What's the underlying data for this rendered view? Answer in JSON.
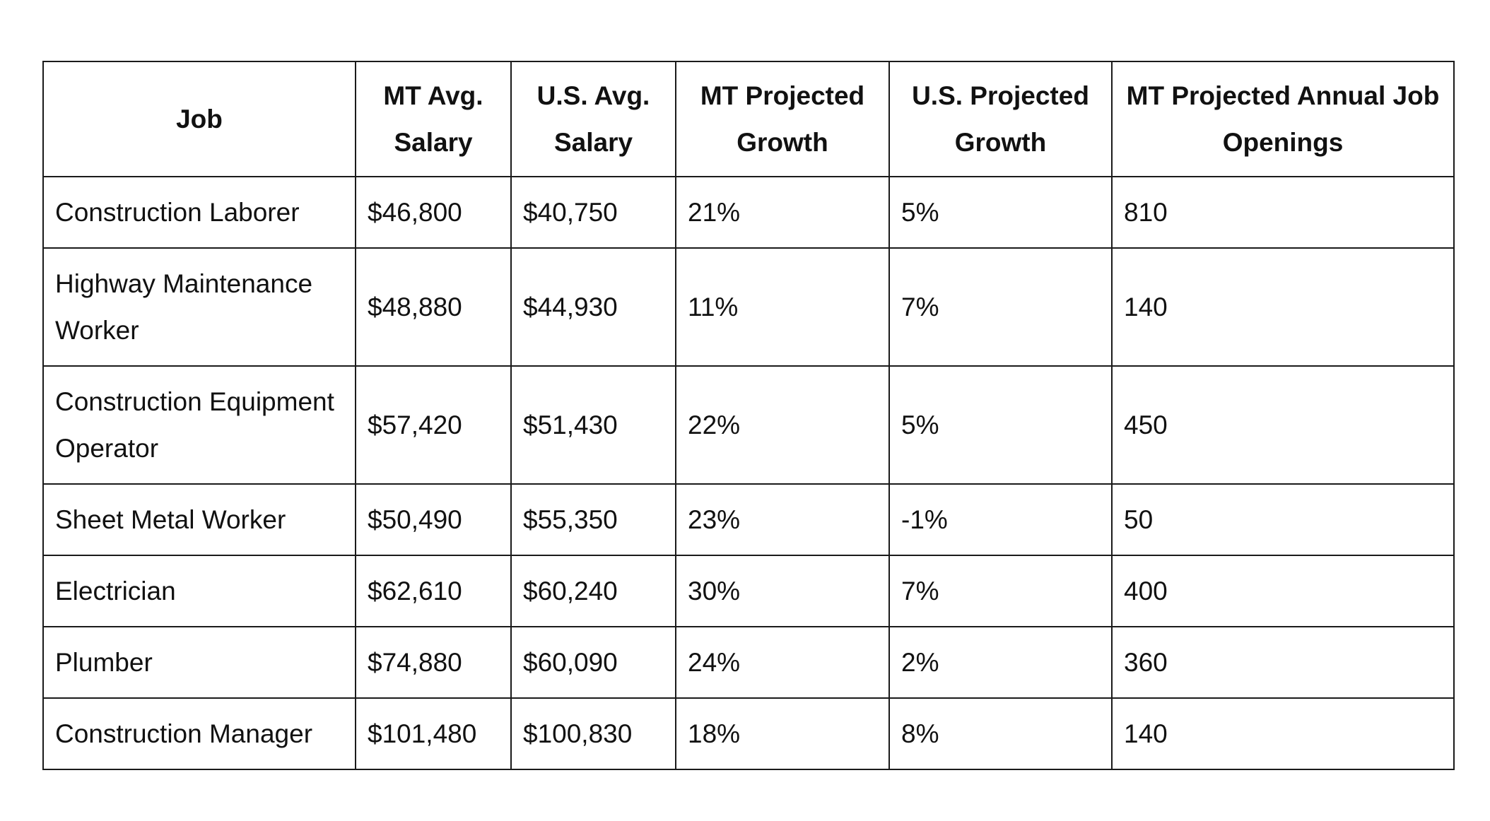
{
  "table": {
    "headers": [
      "Job",
      "MT Avg. Salary",
      "U.S. Avg. Salary",
      "MT Projected Growth",
      "U.S. Projected Growth",
      "MT Projected Annual Job Openings"
    ],
    "rows": [
      [
        "Construction Laborer",
        "$46,800",
        "$40,750",
        "21%",
        "5%",
        "810"
      ],
      [
        "Highway Maintenance Worker",
        "$48,880",
        "$44,930",
        "11%",
        "7%",
        "140"
      ],
      [
        "Construction Equipment Operator",
        "$57,420",
        "$51,430",
        "22%",
        "5%",
        "450"
      ],
      [
        "Sheet Metal Worker",
        "$50,490",
        "$55,350",
        "23%",
        "-1%",
        "50"
      ],
      [
        "Electrician",
        "$62,610",
        "$60,240",
        "30%",
        "7%",
        "400"
      ],
      [
        "Plumber",
        "$74,880",
        "$60,090",
        "24%",
        "2%",
        "360"
      ],
      [
        "Construction Manager",
        "$101,480",
        "$100,830",
        "18%",
        "8%",
        "140"
      ]
    ]
  }
}
